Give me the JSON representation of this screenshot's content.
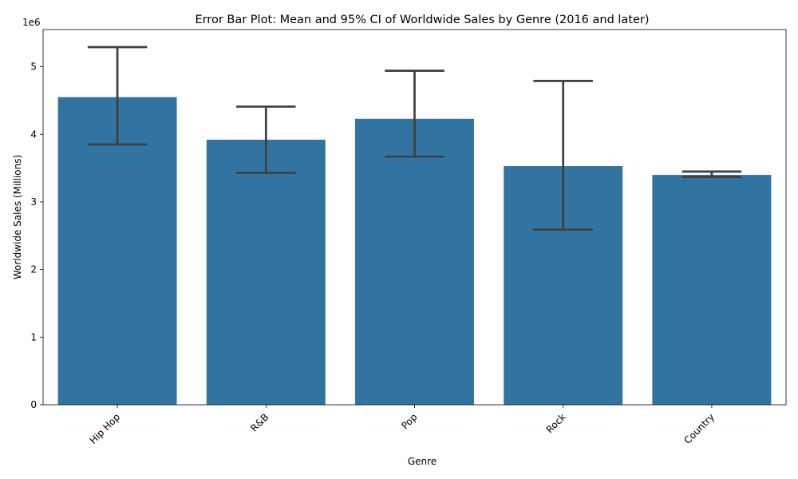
{
  "chart_data": {
    "type": "bar",
    "title": "Error Bar Plot: Mean and 95% CI of Worldwide Sales by Genre (2016 and later)",
    "xlabel": "Genre",
    "ylabel": "Worldwide Sales (Millions)",
    "offset_label": "1e6",
    "categories": [
      "Hip Hop",
      "R&B",
      "Pop",
      "Rock",
      "Country"
    ],
    "values": [
      4550000,
      3920000,
      4230000,
      3530000,
      3400000
    ],
    "ci_low": [
      3850000,
      3430000,
      3670000,
      2590000,
      3370000
    ],
    "ci_high": [
      5290000,
      4410000,
      4940000,
      4790000,
      3450000
    ],
    "ylim": [
      0,
      5550000
    ],
    "y_ticks": [
      0,
      1000000,
      2000000,
      3000000,
      4000000,
      5000000
    ],
    "y_tick_labels": [
      "0",
      "1",
      "2",
      "3",
      "4",
      "5"
    ],
    "grid": false,
    "bar_color": "#3274a1",
    "errorbar_color": "#3f3f3f"
  }
}
